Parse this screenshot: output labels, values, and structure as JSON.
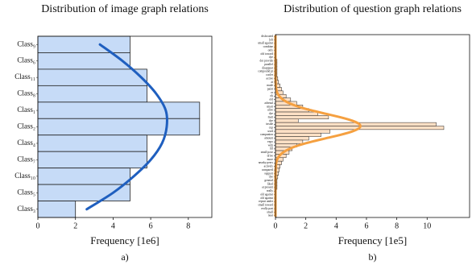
{
  "chart_data": [
    {
      "type": "barh",
      "title": "Distribution of image graph relations",
      "categories": [
        "Class₉",
        "Class₆",
        "Class₁₁",
        "Class₈",
        "Class₁",
        "Class₂",
        "Class₄",
        "Class₇",
        "Class₁₀",
        "Class₅",
        "Class₃"
      ],
      "values": [
        4.9,
        4.9,
        5.8,
        5.8,
        8.6,
        8.6,
        5.8,
        5.8,
        4.9,
        4.9,
        2.0
      ],
      "color": "#c6dbf7",
      "edgecolor": "#222222",
      "fit": {
        "color": "#1f5fbf",
        "values": [
          3.3,
          4.5,
          5.5,
          6.3,
          6.8,
          6.85,
          6.6,
          6.0,
          5.1,
          4.0,
          2.6
        ]
      },
      "xlim": [
        0,
        9.25
      ],
      "xticks": [
        0,
        2,
        4,
        6,
        8
      ],
      "xlabel": "Frequency [1e6]",
      "panel_label": "a)"
    },
    {
      "type": "barh",
      "title": "Distribution of question graph relations",
      "categories": [
        "dislocated",
        "loft",
        "small against",
        "combine",
        "only",
        "old toward",
        "dye",
        "dot provide",
        "parallel",
        "disappear",
        "compound pt",
        "cooler",
        "active",
        "at",
        "made",
        "paint",
        "or",
        "ok",
        "old",
        "adrenal",
        "smart",
        "alive",
        "dye",
        "matt",
        "dye",
        "inside",
        "cup",
        "used",
        "companion",
        "amount",
        "expo",
        "with",
        "fill",
        "small pose",
        "drive",
        "more",
        "nearby peers",
        "actively",
        "compared",
        "support",
        "dye",
        "general",
        "liked",
        "at present",
        "really",
        "old against",
        "old against",
        "repeat under",
        "small toward",
        "really part",
        "small",
        "near"
      ],
      "values": [
        0.05,
        0.05,
        0.05,
        0.05,
        0.05,
        0.05,
        0.05,
        0.1,
        0.1,
        0.1,
        0.1,
        0.1,
        0.15,
        0.2,
        0.3,
        0.4,
        0.5,
        0.7,
        1.0,
        1.4,
        1.8,
        2.2,
        2.8,
        3.5,
        1.5,
        10.6,
        11.1,
        3.6,
        3.0,
        2.2,
        1.8,
        1.4,
        1.1,
        0.9,
        0.7,
        0.5,
        0.4,
        0.3,
        0.25,
        0.2,
        0.15,
        0.1,
        0.1,
        0.1,
        0.05,
        0.05,
        0.05,
        0.05,
        0.05,
        0.05,
        0.05,
        0.05
      ],
      "color": "#fde0c5",
      "edgecolor": "#222222",
      "fit": {
        "color": "#f5a040",
        "values": [
          0,
          0,
          0,
          0,
          0,
          0,
          0,
          0,
          0,
          0,
          0,
          0,
          0.002,
          0.01,
          0.02,
          0.05,
          0.11,
          0.25,
          0.5,
          0.91,
          1.52,
          2.34,
          3.3,
          4.28,
          5.08,
          5.54,
          5.54,
          5.08,
          4.28,
          3.3,
          2.34,
          1.52,
          0.91,
          0.5,
          0.25,
          0.11,
          0.05,
          0.02,
          0.01,
          0,
          0,
          0,
          0,
          0,
          0,
          0,
          0,
          0,
          0,
          0,
          0,
          0
        ]
      },
      "xlim": [
        0,
        12.8
      ],
      "xticks": [
        0,
        2,
        4,
        6,
        8,
        10
      ],
      "xlabel": "Frequency [1e5]",
      "panel_label": "b)"
    }
  ]
}
